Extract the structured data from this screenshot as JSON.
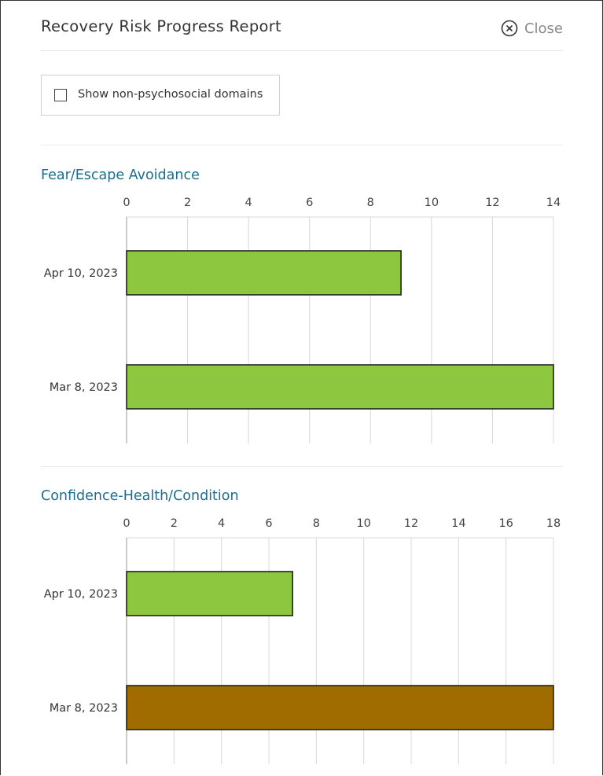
{
  "dialog": {
    "title": "Recovery Risk Progress Report",
    "close_label": "Close"
  },
  "filter": {
    "checkbox_label": "Show non-psychosocial domains",
    "checked": false
  },
  "colors": {
    "green_bar": "#8dc63f",
    "brown_bar": "#a06c00",
    "section_title": "#1b6f8c"
  },
  "chart_data": [
    {
      "type": "bar",
      "orientation": "horizontal",
      "title": "Fear/Escape Avoidance",
      "categories": [
        "Apr 10, 2023",
        "Mar 8, 2023"
      ],
      "values": [
        9,
        14
      ],
      "bar_colors": [
        "#8dc63f",
        "#8dc63f"
      ],
      "xlim": [
        0,
        14
      ],
      "xticks": [
        0,
        2,
        4,
        6,
        8,
        10,
        12,
        14
      ],
      "grid": true
    },
    {
      "type": "bar",
      "orientation": "horizontal",
      "title": "Confidence-Health/Condition",
      "categories": [
        "Apr 10, 2023",
        "Mar 8, 2023"
      ],
      "values": [
        7,
        18
      ],
      "bar_colors": [
        "#8dc63f",
        "#a06c00"
      ],
      "xlim": [
        0,
        18
      ],
      "xticks": [
        0,
        2,
        4,
        6,
        8,
        10,
        12,
        14,
        16,
        18
      ],
      "grid": true
    }
  ]
}
